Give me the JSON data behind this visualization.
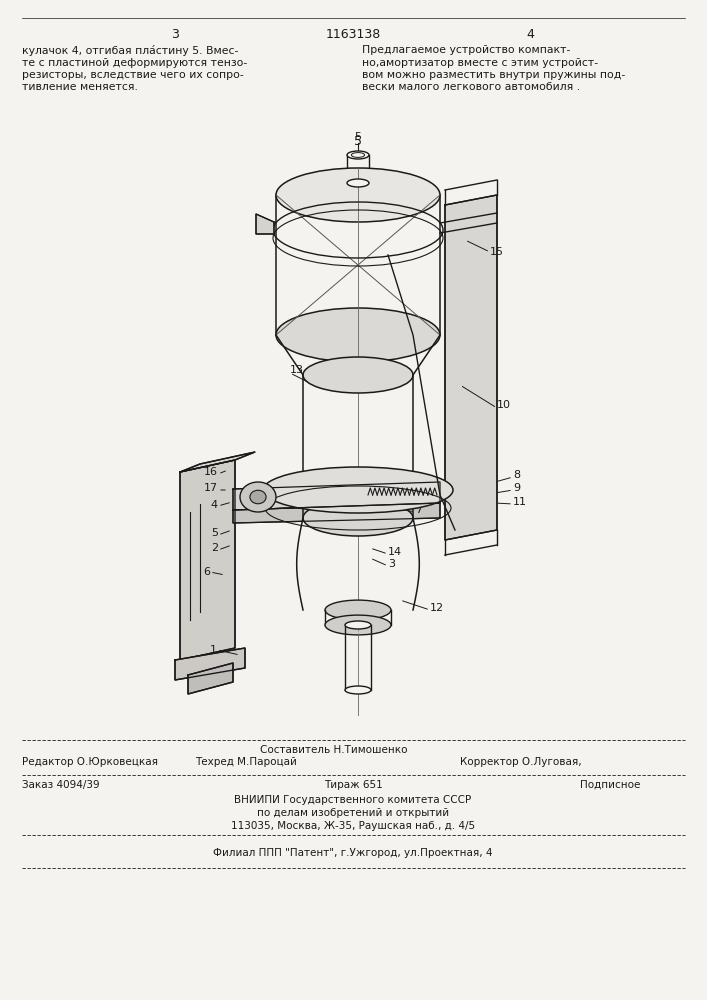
{
  "page_bg": "#f5f3ef",
  "text_color": "#1a1a1a",
  "header_page_left": "3",
  "header_patent": "1163138",
  "header_page_right": "4",
  "text_left": [
    "кулачок 4, отгибая пла́стину 5. Вмес-",
    "те с пластиной деформируются тензо-",
    "резисторы, вследствие чего их сопро-",
    "тивление меняется."
  ],
  "text_right": [
    "Предлагаемое устройство компакт-",
    "но,амортизатор вместе с этим устройст-",
    "вом можно разместить внутри пружины под-",
    "вески малого легкового автомобиля ."
  ],
  "footer_editor": "Редактор О.Юрковецкая",
  "footer_compiler": "Составитель Н.Тимошенко",
  "footer_techred": "Техред М.Пароцай",
  "footer_corrector": "Корректор О.Луговая,",
  "footer_order": "Заказ 4094/39",
  "footer_tirazh": "Тираж 651",
  "footer_podp": "Подписное",
  "footer_vniipo": "ВНИИПИ Государственного комитета СССР",
  "footer_po": "по делам изобретений и открытий",
  "footer_addr": "113035, Москва, Ж-35, Раушская наб., д. 4/5",
  "footer_filial": "Филиал ППП \"Патент\", г.Ужгород, ул.Проектная, 4"
}
